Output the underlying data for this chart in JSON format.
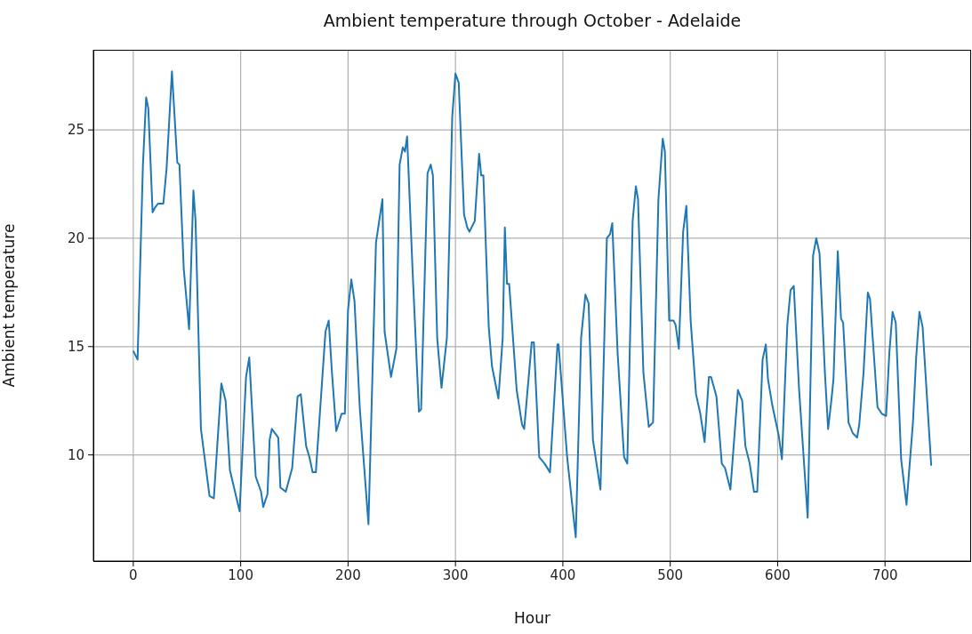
{
  "chart_data": {
    "type": "line",
    "title": "Ambient temperature through October - Adelaide",
    "xlabel": "Hour",
    "ylabel": "Ambient temperature",
    "xlim": [
      -37.15,
      780.15
    ],
    "xticks": [
      0,
      100,
      200,
      300,
      400,
      500,
      600,
      700
    ],
    "ylim": [
      5.1,
      28.7
    ],
    "yticks": [
      10,
      15,
      20,
      25
    ],
    "grid": true,
    "line_style": "solid",
    "marker": "none",
    "series": [
      {
        "color": "#1f77b4",
        "x": [
          0,
          4,
          9,
          12,
          14,
          18,
          20,
          23,
          28,
          31,
          36,
          41,
          43,
          47,
          52,
          56,
          58,
          63,
          71,
          75,
          82,
          86,
          90,
          99,
          105,
          108,
          114,
          119,
          121,
          125,
          127,
          129,
          135,
          137,
          142,
          148,
          153,
          156,
          161,
          164,
          167,
          170,
          179,
          182,
          185,
          189,
          194,
          197,
          200,
          203,
          206,
          211,
          219,
          226,
          232,
          234,
          240,
          245,
          248,
          251,
          253,
          255,
          260,
          266,
          268,
          274,
          277,
          279,
          283,
          287,
          292,
          297,
          300,
          303,
          308,
          311,
          313,
          318,
          322,
          324,
          326,
          331,
          334,
          340,
          344,
          346,
          348,
          350,
          357,
          362,
          364,
          371,
          373,
          378,
          383,
          388,
          395,
          396,
          404,
          412,
          417,
          421,
          424,
          428,
          435,
          441,
          444,
          446,
          451,
          457,
          460,
          465,
          468,
          470,
          475,
          480,
          484,
          489,
          493,
          495,
          499,
          503,
          505,
          508,
          512,
          515,
          519,
          524,
          528,
          532,
          536,
          538,
          543,
          548,
          551,
          556,
          563,
          567,
          570,
          574,
          578,
          581,
          586,
          589,
          591,
          595,
          601,
          604,
          609,
          612,
          615,
          620,
          628,
          633,
          636,
          639,
          644,
          647,
          650,
          652,
          656,
          659,
          661,
          666,
          670,
          674,
          676,
          680,
          684,
          686,
          693,
          697,
          701,
          704,
          707,
          710,
          715,
          720,
          726,
          729,
          732,
          735,
          743
        ],
        "values": [
          14.8,
          14.4,
          23.4,
          26.5,
          26.0,
          21.2,
          21.4,
          21.6,
          21.6,
          23.2,
          27.7,
          23.5,
          23.4,
          18.6,
          15.8,
          22.2,
          20.8,
          11.2,
          8.1,
          8.0,
          13.3,
          12.5,
          9.3,
          7.4,
          13.6,
          14.5,
          9.0,
          8.3,
          7.6,
          8.2,
          10.7,
          11.2,
          10.8,
          8.5,
          8.3,
          9.4,
          12.7,
          12.8,
          10.4,
          9.9,
          9.2,
          9.2,
          15.7,
          16.2,
          13.8,
          11.1,
          11.9,
          11.9,
          16.7,
          18.1,
          17.1,
          12.1,
          6.8,
          19.8,
          21.8,
          15.7,
          13.6,
          14.9,
          23.4,
          24.2,
          24.0,
          24.7,
          18.6,
          12.0,
          12.1,
          23.0,
          23.4,
          22.9,
          15.4,
          13.1,
          15.4,
          25.6,
          27.6,
          27.2,
          21.1,
          20.5,
          20.3,
          20.8,
          23.9,
          22.9,
          22.9,
          15.9,
          14.1,
          12.6,
          15.4,
          20.5,
          17.9,
          17.9,
          13.0,
          11.4,
          11.2,
          15.2,
          15.2,
          9.9,
          9.6,
          9.2,
          15.1,
          15.1,
          9.9,
          6.2,
          15.4,
          17.4,
          17.0,
          10.7,
          8.4,
          20.0,
          20.2,
          20.7,
          14.7,
          9.9,
          9.6,
          20.8,
          22.4,
          21.8,
          13.8,
          11.3,
          11.5,
          21.8,
          24.6,
          24.0,
          16.2,
          16.2,
          16.0,
          14.9,
          20.3,
          21.5,
          16.2,
          12.8,
          11.9,
          10.6,
          13.6,
          13.6,
          12.7,
          9.6,
          9.4,
          8.4,
          13.0,
          12.5,
          10.4,
          9.6,
          8.3,
          8.3,
          14.4,
          15.1,
          13.5,
          12.3,
          10.9,
          9.8,
          16.0,
          17.6,
          17.8,
          13.0,
          7.1,
          19.2,
          20.0,
          19.3,
          13.8,
          11.2,
          12.5,
          13.5,
          19.4,
          16.3,
          16.1,
          11.5,
          11.0,
          10.8,
          11.4,
          13.8,
          17.5,
          17.2,
          12.2,
          11.9,
          11.8,
          14.7,
          16.6,
          16.1,
          9.8,
          7.7,
          11.5,
          14.5,
          16.6,
          15.9,
          9.5
        ]
      }
    ]
  }
}
